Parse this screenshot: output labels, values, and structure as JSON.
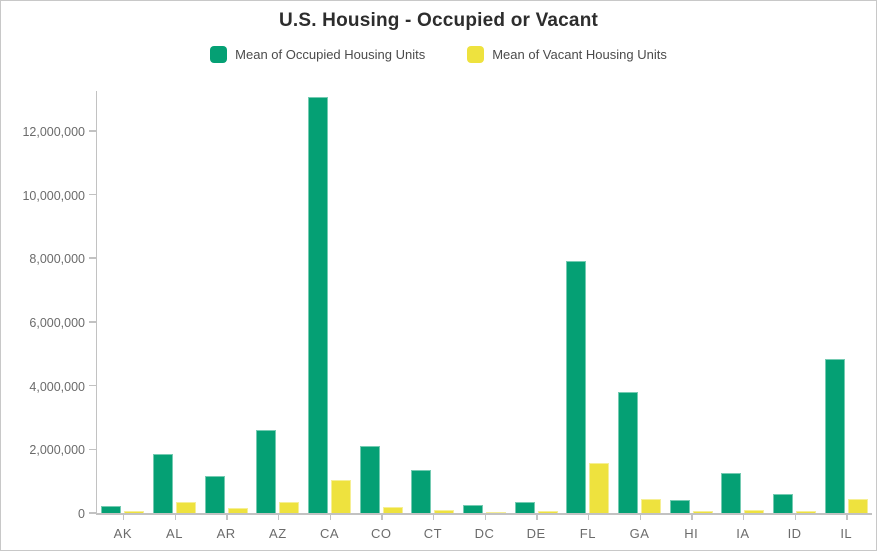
{
  "chart_data": {
    "type": "bar",
    "title": "U.S. Housing - Occupied or Vacant",
    "xlabel": "",
    "ylabel": "",
    "grid": false,
    "legend_position": "top",
    "ylim": [
      0,
      13300000
    ],
    "categories": [
      "AK",
      "AL",
      "AR",
      "AZ",
      "CA",
      "CO",
      "CT",
      "DC",
      "DE",
      "FL",
      "GA",
      "HI",
      "IA",
      "ID",
      "IL"
    ],
    "series": [
      {
        "name": "Mean of Occupied Housing Units",
        "color": "#05a074",
        "values": [
          230000,
          1850000,
          1150000,
          2600000,
          13050000,
          2100000,
          1350000,
          250000,
          350000,
          7900000,
          3800000,
          420000,
          1250000,
          590000,
          4850000
        ]
      },
      {
        "name": "Mean of Vacant Housing Units",
        "color": "#eee23e",
        "values": [
          50000,
          350000,
          160000,
          350000,
          1050000,
          180000,
          100000,
          30000,
          50000,
          1580000,
          450000,
          50000,
          100000,
          70000,
          450000
        ]
      }
    ],
    "y_ticks": [
      {
        "value": 0,
        "label": "0"
      },
      {
        "value": 2000000,
        "label": "2,000,000"
      },
      {
        "value": 4000000,
        "label": "4,000,000"
      },
      {
        "value": 6000000,
        "label": "6,000,000"
      },
      {
        "value": 8000000,
        "label": "8,000,000"
      },
      {
        "value": 10000000,
        "label": "10,000,000"
      },
      {
        "value": 12000000,
        "label": "12,000,000"
      }
    ]
  },
  "legend": [
    {
      "label": "Mean of Occupied Housing Units",
      "color": "#05a074"
    },
    {
      "label": "Mean of Vacant Housing Units",
      "color": "#eee23e"
    }
  ]
}
